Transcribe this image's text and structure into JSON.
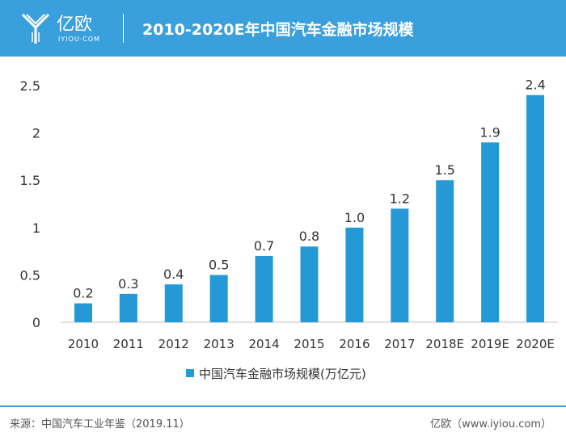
{
  "header": {
    "brand": "亿欧",
    "brand_sub": "IYIOU·COM",
    "title": "2010-2020E年中国汽车金融市场规模"
  },
  "colors": {
    "header_bg": "#3aa0dd",
    "bar": "#2598d6"
  },
  "chart_data": {
    "type": "bar",
    "title": "2010-2020E年中国汽车金融市场规模",
    "categories": [
      "2010",
      "2011",
      "2012",
      "2013",
      "2014",
      "2015",
      "2016",
      "2017",
      "2018E",
      "2019E",
      "2020E"
    ],
    "series": [
      {
        "name": "中国汽车金融市场规模(万亿元)",
        "values": [
          0.2,
          0.3,
          0.4,
          0.5,
          0.7,
          0.8,
          1.0,
          1.2,
          1.5,
          1.9,
          2.4
        ]
      }
    ],
    "data_labels": [
      "0.2",
      "0.3",
      "0.4",
      "0.5",
      "0.7",
      "0.8",
      "1.0",
      "1.2",
      "1.5",
      "1.9",
      "2.4"
    ],
    "yticks": [
      0,
      0.5,
      1,
      1.5,
      2,
      2.5
    ],
    "ytick_labels": [
      "0",
      "0.5",
      "1",
      "1.5",
      "2",
      "2.5"
    ],
    "ylim": [
      0,
      2.5
    ],
    "xlabel": "",
    "ylabel": "",
    "legend": "bottom-center",
    "grid": false
  },
  "legend": {
    "label": "中国汽车金融市场规模(万亿元)"
  },
  "footer": {
    "source": "来源：中国汽车工业年鉴（2019.11）",
    "brand": "亿欧（www.iyiou.com）"
  }
}
